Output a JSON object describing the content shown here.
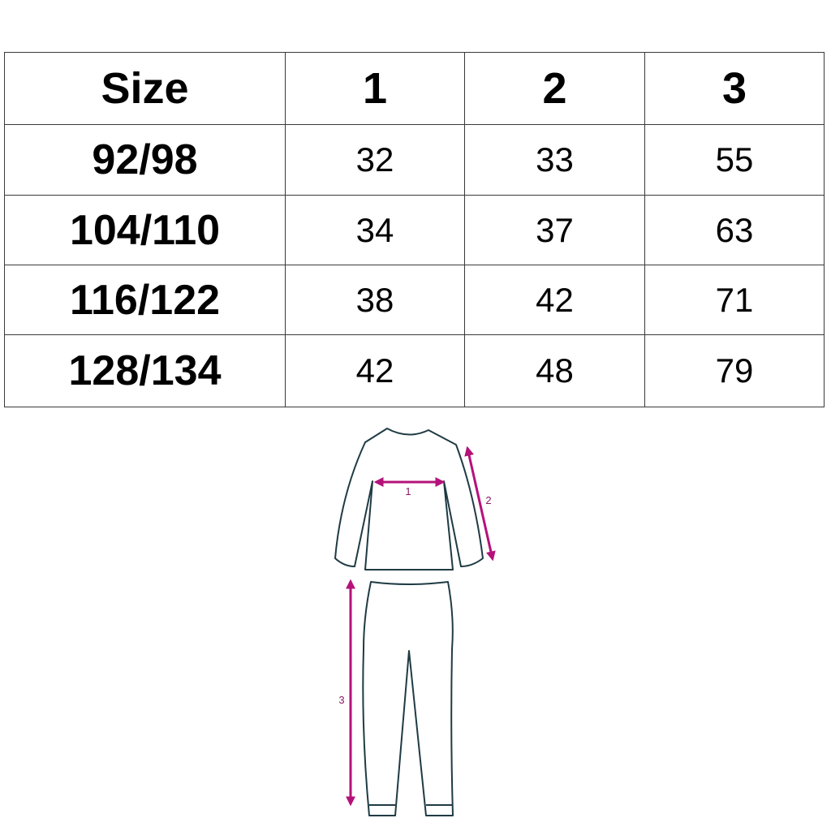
{
  "table": {
    "headers": [
      "Size",
      "1",
      "2",
      "3"
    ],
    "rows": [
      {
        "size": "92/98",
        "values": [
          "32",
          "33",
          "55"
        ]
      },
      {
        "size": "104/110",
        "values": [
          "34",
          "37",
          "63"
        ]
      },
      {
        "size": "116/122",
        "values": [
          "38",
          "42",
          "71"
        ]
      },
      {
        "size": "128/134",
        "values": [
          "42",
          "48",
          "79"
        ]
      }
    ]
  },
  "diagram": {
    "labels": {
      "chest": "1",
      "sleeve": "2",
      "leg": "3"
    },
    "colors": {
      "outline": "#1f3b44",
      "arrow": "#b5117a"
    }
  }
}
